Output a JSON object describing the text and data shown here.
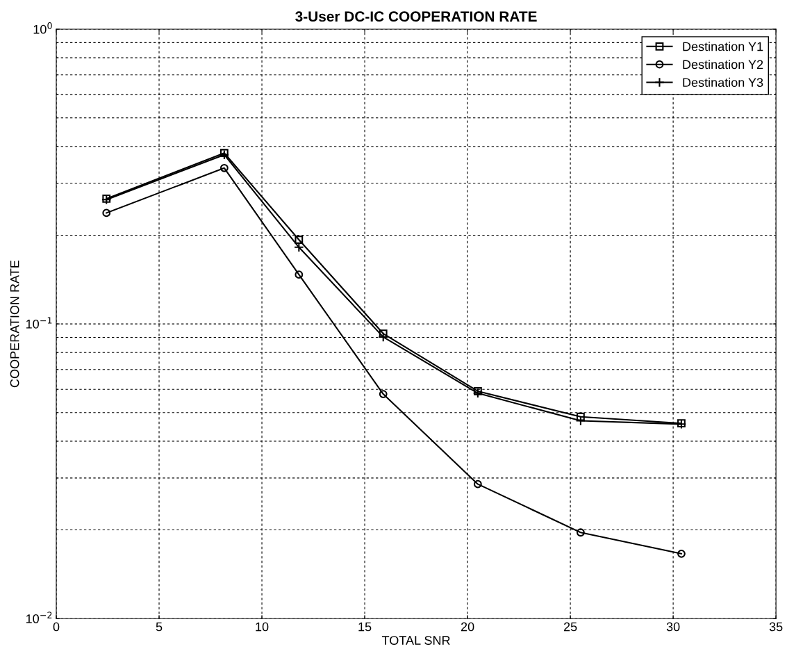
{
  "chart_data": {
    "type": "line",
    "title": "3-User DC-IC COOPERATION RATE",
    "xlabel": "TOTAL SNR",
    "ylabel": "COOPERATION RATE",
    "x": [
      2.44,
      8.17,
      11.8,
      15.9,
      20.5,
      25.5,
      30.4
    ],
    "series": [
      {
        "name": "Destination Y1",
        "color": "#000000",
        "marker": "square",
        "values": [
          0.266,
          0.38,
          0.193,
          0.0927,
          0.0591,
          0.0484,
          0.046
        ]
      },
      {
        "name": "Destination Y2",
        "color": "#000000",
        "marker": "circle",
        "values": [
          0.238,
          0.338,
          0.147,
          0.0578,
          0.0286,
          0.0196,
          0.0166
        ]
      },
      {
        "name": "Destination Y3",
        "color": "#000000",
        "marker": "cross",
        "values": [
          0.264,
          0.375,
          0.182,
          0.0903,
          0.0582,
          0.0469,
          0.0457
        ]
      }
    ],
    "log": "y",
    "xlim": [
      0,
      35
    ],
    "xticks": [
      0,
      5,
      10,
      15,
      20,
      25,
      30,
      35
    ],
    "ylim": [
      0.01,
      1
    ],
    "yticks": [
      {
        "value": 0.01,
        "label": "10$^{−2}$"
      },
      {
        "value": 0.1,
        "label": "10$^{−1}$"
      },
      {
        "value": 1,
        "label": "10$^{0}$"
      }
    ],
    "grid": true,
    "legend": "top right",
    "line_style": "solid"
  }
}
